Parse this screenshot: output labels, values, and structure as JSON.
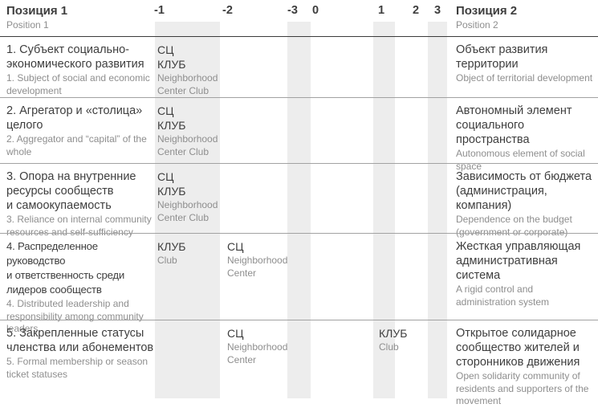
{
  "header": {
    "pos1_title": "Позиция 1",
    "pos1_sub": "Position 1",
    "pos2_title": "Позиция 2",
    "pos2_sub": "Position 2",
    "scale": [
      "-1",
      "-2",
      "-3",
      "0",
      "1",
      "2",
      "3"
    ]
  },
  "legend": {
    "sc_ru": "СЦ",
    "sc_en": "Neighborhood Center",
    "club_ru": "КЛУБ",
    "club_en": "Club"
  },
  "colors": {
    "stripe": "#ededed",
    "dark_text": "#3e3e3e",
    "gray_text": "#8e8e8e",
    "header_rule": "#3b3b3b",
    "row_rule": "#a2a2a2"
  },
  "rows": [
    {
      "pos1_ru": "1. Субъект социально-\nэкономического развития",
      "pos1_en": "1. Subject of social and economic\ndevelopment",
      "m1_ru": "СЦ\nКЛУБ",
      "m1_en": "Neighborhood\nCenter Club",
      "pos2_ru": "Объект развития\nтерритории",
      "pos2_en": "Object of territorial development"
    },
    {
      "pos1_ru": "2. Агрегатор и «столица»\nцелого",
      "pos1_en": "2. Aggregator and “capital” of the\nwhole",
      "m1_ru": "СЦ\nКЛУБ",
      "m1_en": "Neighborhood\nCenter Club",
      "pos2_ru": "Автономный элемент\nсоциального пространства",
      "pos2_en": "Autonomous element of social\nspace"
    },
    {
      "pos1_ru": "3. Опора на внутренние\nресурсы сообществ\nи самоокупаемость",
      "pos1_en": "3. Reliance on internal community\nresources and self-sufficiency",
      "m1_ru": "СЦ\nКЛУБ",
      "m1_en": "Neighborhood\nCenter Club",
      "pos2_ru": "Зависимость от бюджета\n(администрация,\nкомпания)",
      "pos2_en": "Dependence on the budget\n(government or corporate)"
    },
    {
      "pos1_ru": "4. Распределенное руководство\nи ответственность среди\nлидеров сообществ",
      "pos1_en": "4. Distributed leadership and\nresponsibility among community\nleaders",
      "m1_ru": "КЛУБ",
      "m1_en": "Club",
      "m2_ru": "СЦ",
      "m2_en": "Neighborhood\nCenter",
      "pos2_ru": "Жесткая управляющая\nадминистративная\nсистема",
      "pos2_en": "A rigid control and\nadministration system"
    },
    {
      "pos1_ru": "5. Закрепленные статусы\nчленства или абонементов",
      "pos1_en": "5. Formal membership or season\nticket statuses",
      "m2_ru": "СЦ",
      "m2_en": "Neighborhood\nCenter",
      "p1_ru": "КЛУБ",
      "p1_en": "Club",
      "pos2_ru": "Открытое солидарное\nсообщество жителей и\nсторонников движения",
      "pos2_en": "Open solidarity community of\nresidents and supporters of the\nmovement"
    }
  ]
}
